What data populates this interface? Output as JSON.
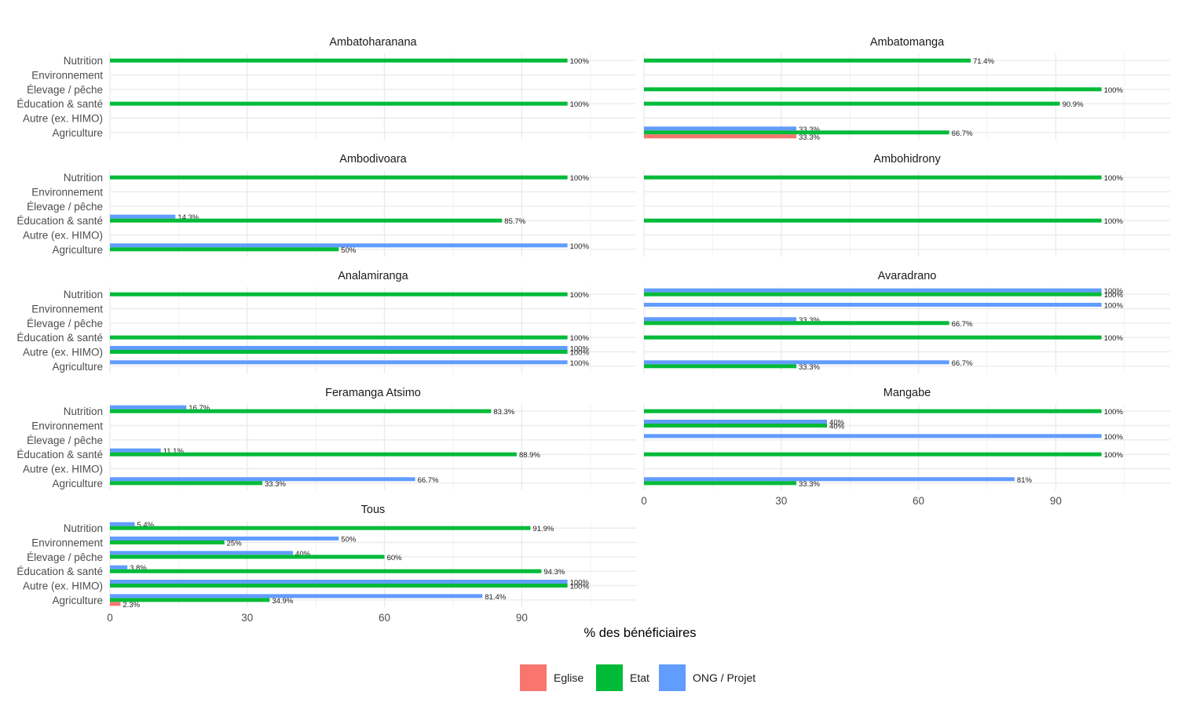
{
  "chart_data": {
    "type": "bar",
    "orientation": "horizontal",
    "layout": "facet-wrap",
    "xlabel": "% des bénéficiaires",
    "ylabel": "",
    "xlim": [
      0,
      115
    ],
    "xticks": [
      0,
      30,
      60,
      90
    ],
    "grid": true,
    "legend_position": "bottom",
    "categories": [
      "Nutrition",
      "Environnement",
      "Élevage / pêche",
      "Éducation & santé",
      "Autre (ex. HIMO)",
      "Agriculture"
    ],
    "legend": [
      {
        "key": "ong",
        "name": "ONG / Projet",
        "color": "#619CFF"
      },
      {
        "key": "etat",
        "name": "Etat",
        "color": "#00BA38"
      },
      {
        "key": "eglise",
        "name": "Eglise",
        "color": "#F8766D"
      }
    ],
    "legend_order": [
      "eglise",
      "etat",
      "ong"
    ],
    "panels": [
      {
        "title": "Ambatoharanana",
        "values": {
          "Nutrition": {
            "etat": 100
          },
          "Éducation & santé": {
            "etat": 100
          }
        },
        "labels": {
          "Nutrition": {
            "etat": "100%"
          },
          "Éducation & santé": {
            "etat": "100%"
          }
        }
      },
      {
        "title": "Ambatomanga",
        "values": {
          "Nutrition": {
            "etat": 71.4
          },
          "Élevage / pêche": {
            "etat": 100
          },
          "Éducation & santé": {
            "etat": 90.9
          },
          "Agriculture": {
            "ong": 33.3,
            "etat": 66.7,
            "eglise": 33.3
          }
        },
        "labels": {
          "Nutrition": {
            "etat": "71.4%"
          },
          "Élevage / pêche": {
            "etat": "100%"
          },
          "Éducation & santé": {
            "etat": "90.9%"
          },
          "Agriculture": {
            "ong": "33.3%",
            "etat": "66.7%",
            "eglise": "33.3%"
          }
        }
      },
      {
        "title": "Ambodivoara",
        "values": {
          "Nutrition": {
            "etat": 100
          },
          "Éducation & santé": {
            "ong": 14.3,
            "etat": 85.7
          },
          "Agriculture": {
            "ong": 100,
            "etat": 50
          }
        },
        "labels": {
          "Nutrition": {
            "etat": "100%"
          },
          "Éducation & santé": {
            "ong": "14.3%",
            "etat": "85.7%"
          },
          "Agriculture": {
            "ong": "100%",
            "etat": "50%"
          }
        }
      },
      {
        "title": "Ambohidrony",
        "values": {
          "Nutrition": {
            "etat": 100
          },
          "Éducation & santé": {
            "etat": 100
          }
        },
        "labels": {
          "Nutrition": {
            "etat": "100%"
          },
          "Éducation & santé": {
            "etat": "100%"
          }
        }
      },
      {
        "title": "Analamiranga",
        "values": {
          "Nutrition": {
            "etat": 100
          },
          "Éducation & santé": {
            "etat": 100
          },
          "Autre (ex. HIMO)": {
            "ong": 100,
            "etat": 100
          },
          "Agriculture": {
            "ong": 100
          }
        },
        "labels": {
          "Nutrition": {
            "etat": "100%"
          },
          "Éducation & santé": {
            "etat": "100%"
          },
          "Autre (ex. HIMO)": {
            "ong": "100%",
            "etat": "100%"
          },
          "Agriculture": {
            "ong": "100%"
          }
        }
      },
      {
        "title": "Avaradrano",
        "values": {
          "Nutrition": {
            "ong": 100,
            "etat": 100
          },
          "Environnement": {
            "ong": 100
          },
          "Élevage / pêche": {
            "ong": 33.3,
            "etat": 66.7
          },
          "Éducation & santé": {
            "etat": 100
          },
          "Agriculture": {
            "ong": 66.7,
            "etat": 33.3
          }
        },
        "labels": {
          "Nutrition": {
            "ong": "100%",
            "etat": "100%"
          },
          "Environnement": {
            "ong": "100%"
          },
          "Élevage / pêche": {
            "ong": "33.3%",
            "etat": "66.7%"
          },
          "Éducation & santé": {
            "etat": "100%"
          },
          "Agriculture": {
            "ong": "66.7%",
            "etat": "33.3%"
          }
        }
      },
      {
        "title": "Feramanga Atsimo",
        "values": {
          "Nutrition": {
            "ong": 16.7,
            "etat": 83.3
          },
          "Éducation & santé": {
            "ong": 11.1,
            "etat": 88.9
          },
          "Agriculture": {
            "ong": 66.7,
            "etat": 33.3
          }
        },
        "labels": {
          "Nutrition": {
            "ong": "16.7%",
            "etat": "83.3%"
          },
          "Éducation & santé": {
            "ong": "11.1%",
            "etat": "88.9%"
          },
          "Agriculture": {
            "ong": "66.7%",
            "etat": "33.3%"
          }
        }
      },
      {
        "title": "Mangabe",
        "values": {
          "Nutrition": {
            "etat": 100
          },
          "Environnement": {
            "ong": 40,
            "etat": 40
          },
          "Élevage / pêche": {
            "ong": 100
          },
          "Éducation & santé": {
            "etat": 100
          },
          "Agriculture": {
            "ong": 81,
            "etat": 33.3
          }
        },
        "labels": {
          "Nutrition": {
            "etat": "100%"
          },
          "Environnement": {
            "ong": "40%",
            "etat": "40%"
          },
          "Élevage / pêche": {
            "ong": "100%"
          },
          "Éducation & santé": {
            "etat": "100%"
          },
          "Agriculture": {
            "ong": "81%",
            "etat": "33.3%"
          }
        }
      },
      {
        "title": "Tous",
        "values": {
          "Nutrition": {
            "ong": 5.4,
            "etat": 91.9
          },
          "Environnement": {
            "ong": 50,
            "etat": 25
          },
          "Élevage / pêche": {
            "ong": 40,
            "etat": 60
          },
          "Éducation & santé": {
            "ong": 3.8,
            "etat": 94.3
          },
          "Autre (ex. HIMO)": {
            "ong": 100,
            "etat": 100
          },
          "Agriculture": {
            "ong": 81.4,
            "etat": 34.9,
            "eglise": 2.3
          }
        },
        "labels": {
          "Nutrition": {
            "ong": "5.4%",
            "etat": "91.9%"
          },
          "Environnement": {
            "ong": "50%",
            "etat": "25%"
          },
          "Élevage / pêche": {
            "ong": "40%",
            "etat": "60%"
          },
          "Éducation & santé": {
            "ong": "3.8%",
            "etat": "94.3%"
          },
          "Autre (ex. HIMO)": {
            "ong": "100%",
            "etat": "100%"
          },
          "Agriculture": {
            "ong": "81.4%",
            "etat": "34.9%",
            "eglise": "2.3%"
          }
        }
      }
    ]
  }
}
